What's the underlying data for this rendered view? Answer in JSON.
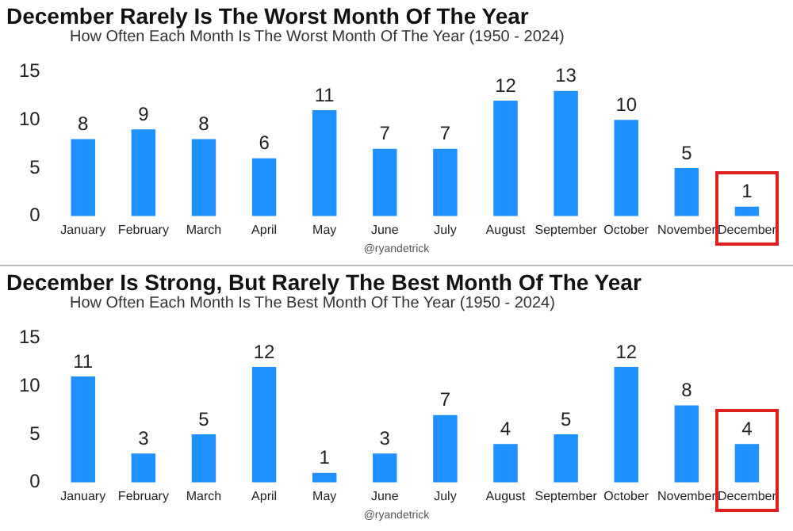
{
  "chart_data": [
    {
      "type": "bar",
      "title": "December Rarely Is The Worst Month Of The Year",
      "subtitle": "How Often Each Month Is The Worst Month Of The Year (1950 - 2024)",
      "categories": [
        "January",
        "February",
        "March",
        "April",
        "May",
        "June",
        "July",
        "August",
        "September",
        "October",
        "November",
        "December"
      ],
      "values": [
        8,
        9,
        8,
        6,
        11,
        7,
        7,
        12,
        13,
        10,
        5,
        1
      ],
      "color": "#1e90ff",
      "ylim": [
        0,
        15
      ],
      "yticks": [
        0,
        5,
        10,
        15
      ],
      "data_labels": true,
      "annotations": [
        "@ryandetrick"
      ]
    },
    {
      "type": "bar",
      "title": "December Is Strong, But Rarely The Best Month Of The Year",
      "subtitle": "How Often Each Month Is The Best Month Of The Year (1950 - 2024)",
      "categories": [
        "January",
        "February",
        "March",
        "April",
        "May",
        "June",
        "July",
        "August",
        "September",
        "October",
        "November",
        "December"
      ],
      "values": [
        11,
        3,
        5,
        12,
        1,
        3,
        7,
        4,
        5,
        12,
        8,
        4
      ],
      "color": "#1e90ff",
      "ylim": [
        0,
        15
      ],
      "yticks": [
        0,
        5,
        10,
        15
      ],
      "data_labels": true,
      "annotations": [
        "@ryandetrick"
      ]
    }
  ]
}
